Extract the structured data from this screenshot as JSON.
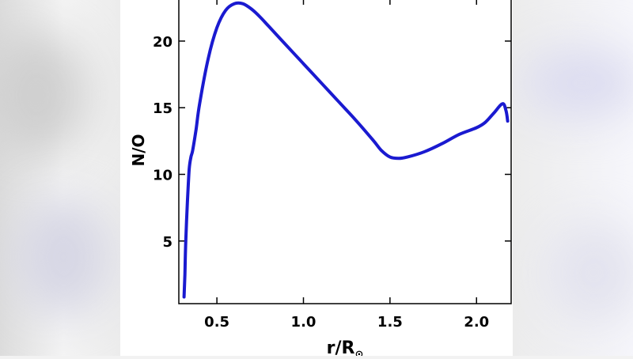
{
  "colors": {
    "line": "#1a1ad0",
    "axis": "#000000",
    "background": "#ffffff"
  },
  "chart_data": {
    "type": "line",
    "title": "",
    "xlabel": "r/R",
    "xlabel_subscript": "⊙",
    "ylabel": "N/O",
    "xlim": [
      0.28,
      2.2
    ],
    "ylim": [
      0.3,
      23.2
    ],
    "xticks": [
      0.5,
      1.0,
      1.5,
      2.0
    ],
    "xtick_labels": [
      "0.5",
      "1.0",
      "1.5",
      "2.0"
    ],
    "yticks": [
      5,
      10,
      15,
      20
    ],
    "ytick_labels": [
      "5",
      "10",
      "15",
      "20"
    ],
    "grid": false,
    "legend": "none",
    "series": [
      {
        "x": [
          0.31,
          0.315,
          0.32,
          0.33,
          0.34,
          0.35,
          0.36,
          0.38,
          0.4,
          0.45,
          0.5,
          0.55,
          0.6,
          0.65,
          0.7,
          0.75,
          0.8,
          0.9,
          1.0,
          1.1,
          1.2,
          1.3,
          1.4,
          1.45,
          1.5,
          1.55,
          1.6,
          1.7,
          1.8,
          1.9,
          2.0,
          2.05,
          2.1,
          2.15,
          2.17,
          2.18
        ],
        "y": [
          0.8,
          2.5,
          5.0,
          8.0,
          10.4,
          11.3,
          11.8,
          13.4,
          15.3,
          18.7,
          21.0,
          22.3,
          22.8,
          22.8,
          22.4,
          21.8,
          21.1,
          19.7,
          18.3,
          16.9,
          15.5,
          14.1,
          12.6,
          11.8,
          11.3,
          11.2,
          11.3,
          11.7,
          12.3,
          13.0,
          13.5,
          13.9,
          14.6,
          15.3,
          14.8,
          14.0
        ]
      }
    ]
  }
}
